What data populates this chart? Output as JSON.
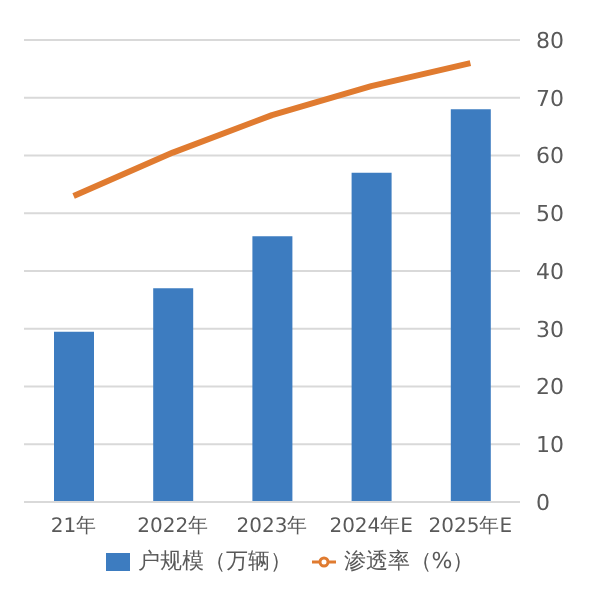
{
  "chart_data": {
    "type": "bar",
    "categories": [
      "21年",
      "2022年",
      "2023年",
      "2024年E",
      "2025年E"
    ],
    "series": [
      {
        "name": "户规模（万辆）",
        "axis": "y2",
        "color": "#3d7cc0",
        "values": [
          29.5,
          37,
          46,
          57,
          68
        ]
      },
      {
        "name": "渗透率（%）",
        "type": "line",
        "axis": "y2",
        "color": "#e07b30",
        "values": [
          53,
          60.5,
          67,
          72,
          76
        ]
      }
    ],
    "y2lim": [
      0,
      80
    ],
    "y2ticks": [
      0,
      10,
      20,
      30,
      40,
      50,
      60,
      70,
      80
    ],
    "grid": "y",
    "legend": "bottom",
    "marker": "none"
  }
}
